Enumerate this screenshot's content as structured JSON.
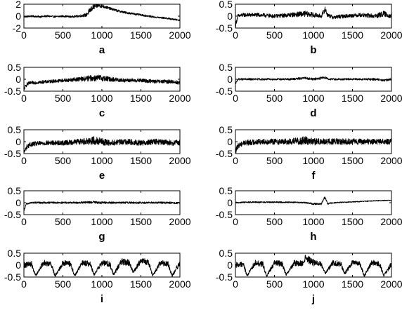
{
  "chart_data": [
    {
      "type": "line",
      "panel_label": "a",
      "xlim": [
        0,
        2000
      ],
      "ylim": [
        -2,
        2
      ],
      "xticks": [
        0,
        500,
        1000,
        1500,
        2000
      ],
      "yticks": [
        -2,
        0,
        2
      ],
      "xtick_labels": [
        "0",
        "500",
        "1000",
        "1500",
        "2000"
      ],
      "ytick_labels": [
        "-2",
        "0",
        "2"
      ],
      "series": [
        {
          "x": [
            0,
            100,
            200,
            300,
            400,
            500,
            600,
            700,
            800,
            850,
            900,
            950,
            1000,
            1050,
            1100,
            1150,
            1200,
            1300,
            1400,
            1500,
            1600,
            1700,
            1800,
            1900,
            2000
          ],
          "y": [
            -0.1,
            0.0,
            -0.1,
            0.0,
            -0.1,
            0.0,
            -0.1,
            0.0,
            0.2,
            1.0,
            1.6,
            1.8,
            1.7,
            1.5,
            1.3,
            1.1,
            0.9,
            0.6,
            0.4,
            0.2,
            0.0,
            -0.2,
            -0.3,
            -0.5,
            -0.7
          ],
          "amp": [
            0.15,
            0.15,
            0.15,
            0.15,
            0.15,
            0.15,
            0.15,
            0.18,
            0.3,
            0.5,
            0.45,
            0.35,
            0.3,
            0.25,
            0.22,
            0.2,
            0.2,
            0.18,
            0.17,
            0.16,
            0.15,
            0.15,
            0.15,
            0.15,
            0.12
          ]
        }
      ]
    },
    {
      "type": "line",
      "panel_label": "b",
      "xlim": [
        0,
        2000
      ],
      "ylim": [
        -0.5,
        0.5
      ],
      "xticks": [
        0,
        500,
        1000,
        1500,
        2000
      ],
      "yticks": [
        -0.5,
        0,
        0.5
      ],
      "xtick_labels": [
        "0",
        "500",
        "1000",
        "1500",
        "2000"
      ],
      "ytick_labels": [
        "-0.5",
        "0",
        "0.5"
      ],
      "series": [
        {
          "x": [
            0,
            30,
            100,
            300,
            500,
            700,
            900,
            1000,
            1100,
            1150,
            1180,
            1250,
            1400,
            1600,
            1800,
            1900,
            2000
          ],
          "y": [
            -0.4,
            0.0,
            0.05,
            0.05,
            0.0,
            0.05,
            0.1,
            0.05,
            0.0,
            0.3,
            0.05,
            -0.05,
            0.0,
            0.05,
            0.0,
            0.1,
            0.0
          ],
          "amp": [
            0.1,
            0.08,
            0.08,
            0.08,
            0.08,
            0.09,
            0.12,
            0.1,
            0.08,
            0.12,
            0.08,
            0.08,
            0.08,
            0.08,
            0.1,
            0.12,
            0.1
          ]
        }
      ]
    },
    {
      "type": "line",
      "panel_label": "c",
      "xlim": [
        0,
        2000
      ],
      "ylim": [
        -0.5,
        0.5
      ],
      "xticks": [
        0,
        500,
        1000,
        1500,
        2000
      ],
      "yticks": [
        -0.5,
        0,
        0.5
      ],
      "xtick_labels": [
        "0",
        "500",
        "1000",
        "1500",
        "2000"
      ],
      "ytick_labels": [
        "-0.5",
        "0",
        "0.5"
      ],
      "series": [
        {
          "x": [
            0,
            40,
            100,
            300,
            500,
            700,
            900,
            1000,
            1100,
            1300,
            1500,
            1700,
            1900,
            2000
          ],
          "y": [
            -0.4,
            -0.2,
            -0.15,
            -0.1,
            -0.05,
            0.0,
            0.05,
            0.05,
            0.0,
            -0.05,
            -0.05,
            -0.1,
            -0.1,
            -0.15
          ],
          "amp": [
            0.08,
            0.08,
            0.07,
            0.07,
            0.07,
            0.09,
            0.14,
            0.13,
            0.1,
            0.08,
            0.08,
            0.08,
            0.08,
            0.08
          ]
        }
      ]
    },
    {
      "type": "line",
      "panel_label": "d",
      "xlim": [
        0,
        2000
      ],
      "ylim": [
        -0.5,
        0.5
      ],
      "xticks": [
        0,
        500,
        1000,
        1500,
        2000
      ],
      "yticks": [
        -0.5,
        0,
        0.5
      ],
      "xtick_labels": [
        "0",
        "500",
        "1000",
        "1500",
        "2000"
      ],
      "ytick_labels": [
        "-0.5",
        "0",
        "0.5"
      ],
      "series": [
        {
          "x": [
            0,
            30,
            100,
            300,
            500,
            700,
            900,
            1000,
            1150,
            1200,
            1400,
            1600,
            1800,
            1900,
            2000
          ],
          "y": [
            -0.2,
            0.0,
            0.0,
            0.0,
            0.0,
            0.0,
            0.05,
            0.0,
            0.08,
            0.0,
            0.0,
            0.0,
            0.0,
            -0.05,
            0.0
          ],
          "amp": [
            0.04,
            0.04,
            0.04,
            0.04,
            0.04,
            0.04,
            0.05,
            0.05,
            0.06,
            0.04,
            0.04,
            0.04,
            0.05,
            0.05,
            0.04
          ]
        }
      ]
    },
    {
      "type": "line",
      "panel_label": "e",
      "xlim": [
        0,
        2000
      ],
      "ylim": [
        -0.5,
        0.5
      ],
      "xticks": [
        0,
        500,
        1000,
        1500,
        2000
      ],
      "yticks": [
        -0.5,
        0,
        0.5
      ],
      "xtick_labels": [
        "0",
        "500",
        "1000",
        "1500",
        "2000"
      ],
      "ytick_labels": [
        "-0.5",
        "0",
        "0.5"
      ],
      "series": [
        {
          "x": [
            0,
            40,
            100,
            300,
            500,
            700,
            900,
            1000,
            1100,
            1300,
            1500,
            1700,
            1900,
            2000
          ],
          "y": [
            -0.45,
            -0.2,
            -0.1,
            -0.05,
            -0.05,
            0.0,
            0.05,
            0.0,
            -0.05,
            0.0,
            -0.05,
            0.0,
            -0.05,
            -0.05
          ],
          "amp": [
            0.1,
            0.1,
            0.1,
            0.1,
            0.1,
            0.12,
            0.18,
            0.15,
            0.12,
            0.12,
            0.12,
            0.12,
            0.12,
            0.12
          ]
        }
      ]
    },
    {
      "type": "line",
      "panel_label": "f",
      "xlim": [
        0,
        2000
      ],
      "ylim": [
        -0.5,
        0.5
      ],
      "xticks": [
        0,
        500,
        1000,
        1500,
        2000
      ],
      "yticks": [
        -0.5,
        0,
        0.5
      ],
      "xtick_labels": [
        "0",
        "500",
        "1000",
        "1500",
        "2000"
      ],
      "ytick_labels": [
        "-0.5",
        "0",
        "0.5"
      ],
      "series": [
        {
          "x": [
            0,
            40,
            100,
            300,
            500,
            700,
            900,
            1000,
            1100,
            1300,
            1500,
            1700,
            1900,
            2000
          ],
          "y": [
            -0.4,
            -0.15,
            -0.05,
            0.0,
            0.0,
            0.0,
            0.05,
            0.0,
            0.0,
            0.0,
            0.0,
            0.0,
            0.0,
            0.0
          ],
          "amp": [
            0.12,
            0.12,
            0.12,
            0.12,
            0.12,
            0.13,
            0.18,
            0.15,
            0.13,
            0.13,
            0.13,
            0.12,
            0.12,
            0.12
          ]
        }
      ]
    },
    {
      "type": "line",
      "panel_label": "g",
      "xlim": [
        0,
        2000
      ],
      "ylim": [
        -0.5,
        0.5
      ],
      "xticks": [
        0,
        500,
        1000,
        1500,
        2000
      ],
      "yticks": [
        -0.5,
        0,
        0.5
      ],
      "xtick_labels": [
        "0",
        "500",
        "1000",
        "1500",
        "2000"
      ],
      "ytick_labels": [
        "-0.5",
        "0",
        "0.5"
      ],
      "series": [
        {
          "x": [
            0,
            30,
            100,
            300,
            500,
            700,
            900,
            1000,
            1100,
            1300,
            1500,
            1700,
            1900,
            2000
          ],
          "y": [
            -0.35,
            -0.05,
            0.0,
            0.0,
            0.0,
            0.0,
            0.02,
            0.0,
            0.0,
            0.0,
            0.0,
            0.0,
            0.0,
            -0.02
          ],
          "amp": [
            0.04,
            0.04,
            0.04,
            0.04,
            0.04,
            0.04,
            0.05,
            0.05,
            0.04,
            0.04,
            0.04,
            0.04,
            0.04,
            0.04
          ]
        }
      ]
    },
    {
      "type": "line",
      "panel_label": "h",
      "xlim": [
        0,
        2000
      ],
      "ylim": [
        -0.5,
        0.5
      ],
      "xticks": [
        0,
        500,
        1000,
        1500,
        2000
      ],
      "yticks": [
        -0.5,
        0,
        0.5
      ],
      "xtick_labels": [
        "0",
        "500",
        "1000",
        "1500",
        "2000"
      ],
      "ytick_labels": [
        "-0.5",
        "0",
        "0.5"
      ],
      "series": [
        {
          "x": [
            0,
            30,
            100,
            300,
            500,
            700,
            900,
            1000,
            1100,
            1150,
            1180,
            1250,
            1400,
            1600,
            1800,
            2000
          ],
          "y": [
            0.0,
            0.0,
            0.02,
            0.02,
            0.02,
            0.02,
            0.0,
            -0.05,
            -0.05,
            0.25,
            -0.05,
            0.0,
            0.02,
            0.05,
            0.08,
            0.1
          ],
          "amp": [
            0.03,
            0.03,
            0.03,
            0.03,
            0.03,
            0.03,
            0.03,
            0.04,
            0.04,
            0.05,
            0.03,
            0.03,
            0.02,
            0.02,
            0.02,
            0.02
          ]
        }
      ]
    },
    {
      "type": "line",
      "panel_label": "i",
      "xlim": [
        0,
        2000
      ],
      "ylim": [
        -0.5,
        0.5
      ],
      "xticks": [
        0,
        500,
        1000,
        1500,
        2000
      ],
      "yticks": [
        -0.5,
        0,
        0.5
      ],
      "xtick_labels": [
        "0",
        "500",
        "1000",
        "1500",
        "2000"
      ],
      "ytick_labels": [
        "-0.5",
        "0",
        "0.5"
      ],
      "series": [
        {
          "x": [
            0,
            100,
            150,
            250,
            350,
            400,
            500,
            600,
            650,
            750,
            850,
            900,
            1000,
            1100,
            1150,
            1250,
            1350,
            1400,
            1500,
            1600,
            1650,
            1750,
            1850,
            1900,
            2000
          ],
          "y": [
            0.0,
            0.05,
            -0.45,
            0.1,
            0.05,
            -0.45,
            0.1,
            0.05,
            -0.45,
            0.1,
            0.05,
            -0.4,
            0.1,
            0.05,
            -0.4,
            0.15,
            0.1,
            -0.3,
            0.2,
            0.1,
            -0.45,
            0.1,
            0.05,
            -0.45,
            0.1
          ],
          "amp": [
            0.12,
            0.12,
            0.05,
            0.12,
            0.12,
            0.05,
            0.12,
            0.12,
            0.05,
            0.12,
            0.12,
            0.05,
            0.12,
            0.12,
            0.05,
            0.14,
            0.14,
            0.05,
            0.14,
            0.12,
            0.05,
            0.12,
            0.12,
            0.05,
            0.12
          ]
        }
      ]
    },
    {
      "type": "line",
      "panel_label": "j",
      "xlim": [
        0,
        2000
      ],
      "ylim": [
        -0.5,
        0.5
      ],
      "xticks": [
        0,
        500,
        1000,
        1500,
        2000
      ],
      "yticks": [
        -0.5,
        0,
        0.5
      ],
      "xtick_labels": [
        "0",
        "500",
        "1000",
        "1500",
        "2000"
      ],
      "ytick_labels": [
        "-0.5",
        "0",
        "0.5"
      ],
      "series": [
        {
          "x": [
            0,
            100,
            150,
            250,
            350,
            400,
            500,
            600,
            650,
            750,
            850,
            900,
            1000,
            1100,
            1150,
            1250,
            1350,
            1400,
            1500,
            1600,
            1650,
            1750,
            1850,
            1900,
            2000
          ],
          "y": [
            0.0,
            0.05,
            -0.45,
            0.1,
            0.05,
            -0.45,
            0.1,
            0.05,
            -0.4,
            0.1,
            0.05,
            0.3,
            0.1,
            0.05,
            -0.35,
            0.1,
            0.05,
            -0.35,
            0.1,
            0.05,
            -0.45,
            0.1,
            0.05,
            -0.45,
            0.05
          ],
          "amp": [
            0.12,
            0.12,
            0.05,
            0.12,
            0.12,
            0.05,
            0.12,
            0.12,
            0.05,
            0.12,
            0.14,
            0.15,
            0.14,
            0.12,
            0.05,
            0.12,
            0.12,
            0.05,
            0.12,
            0.12,
            0.05,
            0.12,
            0.12,
            0.05,
            0.12
          ]
        }
      ]
    }
  ],
  "style": {
    "line_color": "#000000",
    "axis_color": "#000000",
    "background": "#ffffff"
  }
}
